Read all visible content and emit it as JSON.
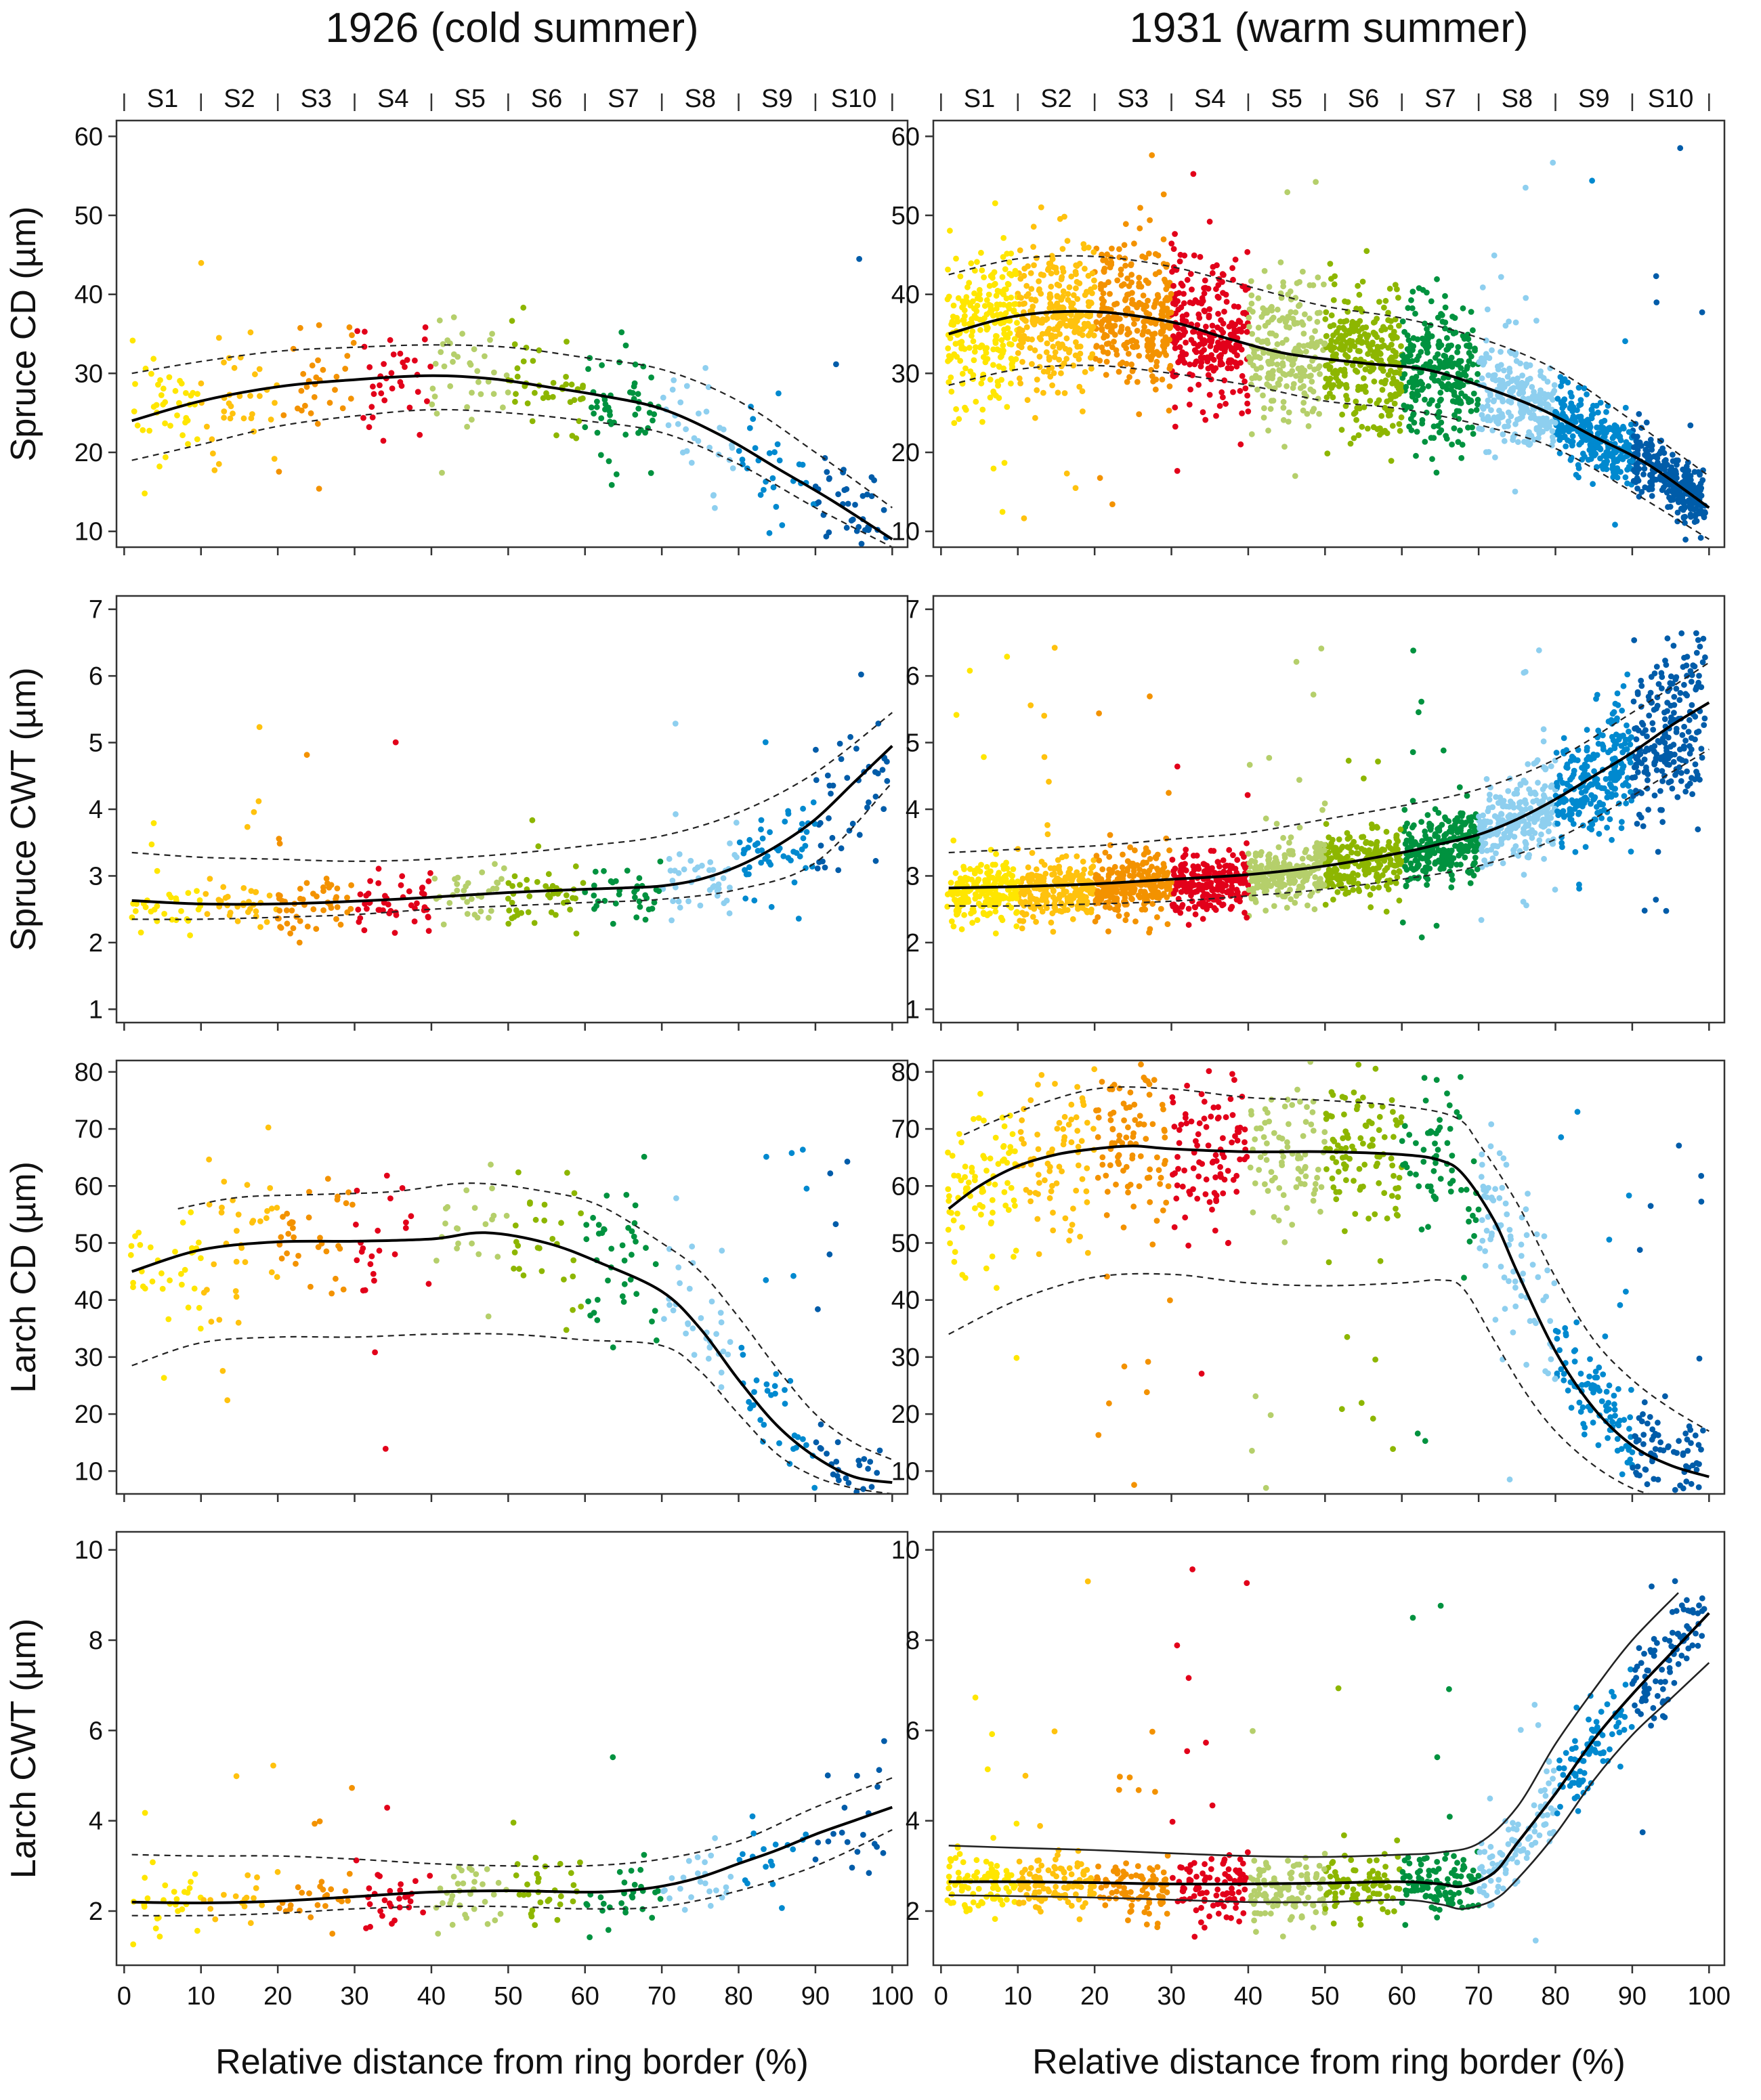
{
  "chart_data": {
    "type": "scatter",
    "columns": [
      {
        "title": "1926 (cold summer)",
        "xlabel": "Relative distance from ring border (%)"
      },
      {
        "title": "1931 (warm summer)",
        "xlabel": "Relative distance from ring border (%)"
      }
    ],
    "segments": {
      "labels": [
        "S1",
        "S2",
        "S3",
        "S4",
        "S5",
        "S6",
        "S7",
        "S8",
        "S9",
        "S10"
      ],
      "colors": [
        "#FFE600",
        "#FFC20E",
        "#F39200",
        "#E2001A",
        "#B5CF6B",
        "#8DB600",
        "#00923F",
        "#8ECFEF",
        "#0089CF",
        "#005CA9"
      ]
    },
    "x_ticks": [
      0,
      10,
      20,
      30,
      40,
      50,
      60,
      70,
      80,
      90,
      100
    ],
    "xlim": [
      -1,
      102
    ],
    "panels": [
      {
        "id": "spruce-cd-1926",
        "row": 0,
        "col": 0,
        "ylabel": "Spruce CD (µm)",
        "ylim": [
          8,
          62
        ],
        "y_ticks": [
          10,
          20,
          30,
          40,
          50,
          60
        ],
        "n_points": 380,
        "center_shift": 0,
        "spread": 3.5,
        "spread_growth": 0,
        "outlier_rate": 0.03,
        "outlier_range": [
          9,
          45
        ],
        "fit": {
          "x": [
            1,
            10,
            20,
            30,
            40,
            48,
            55,
            62,
            70,
            78,
            85,
            92,
            100
          ],
          "y": [
            24,
            26.5,
            28.3,
            29.2,
            29.7,
            29.3,
            28.3,
            27.2,
            25.5,
            22,
            18,
            14,
            9
          ]
        },
        "band_upper": {
          "x": [
            1,
            10,
            20,
            30,
            40,
            50,
            60,
            70,
            80,
            90,
            100
          ],
          "y": [
            30,
            31.5,
            32.8,
            33.3,
            33.6,
            33.3,
            32,
            30.5,
            26.5,
            20,
            13
          ]
        },
        "band_lower": {
          "x": [
            1,
            10,
            20,
            30,
            40,
            50,
            60,
            70,
            80,
            90,
            100
          ],
          "y": [
            19,
            21,
            23.3,
            24.6,
            25.4,
            25,
            24,
            22.5,
            18.5,
            13,
            8
          ]
        },
        "band_style": "dashed"
      },
      {
        "id": "spruce-cd-1931",
        "row": 0,
        "col": 1,
        "ylabel": "",
        "ylim": [
          8,
          62
        ],
        "y_ticks": [
          10,
          20,
          30,
          40,
          50,
          60
        ],
        "n_points": 2600,
        "center_shift": 0,
        "spread": 4.5,
        "spread_growth": -2,
        "outlier_rate": 0.02,
        "outlier_range": [
          10,
          59
        ],
        "fit": {
          "x": [
            1,
            10,
            20,
            30,
            37,
            45,
            55,
            63,
            70,
            78,
            85,
            92,
            100
          ],
          "y": [
            35,
            37.3,
            37.8,
            36.5,
            34.5,
            32.5,
            31.3,
            30.5,
            28.5,
            25.5,
            22,
            18.5,
            13
          ]
        },
        "band_upper": {
          "x": [
            1,
            10,
            20,
            30,
            40,
            50,
            60,
            70,
            80,
            90,
            100
          ],
          "y": [
            42.5,
            44.5,
            44.8,
            43.5,
            41,
            38.5,
            37,
            34.5,
            30.5,
            24,
            17
          ]
        },
        "band_lower": {
          "x": [
            1,
            10,
            20,
            30,
            40,
            50,
            60,
            70,
            80,
            90,
            100
          ],
          "y": [
            28.5,
            30.5,
            31,
            30,
            28.5,
            26.5,
            25.5,
            23.5,
            20.5,
            15,
            9
          ]
        },
        "band_style": "dashed"
      },
      {
        "id": "spruce-cwt-1926",
        "row": 1,
        "col": 0,
        "ylabel": "Spruce CWT (µm)",
        "ylim": [
          0.8,
          7.2
        ],
        "y_ticks": [
          1,
          2,
          3,
          4,
          5,
          6,
          7
        ],
        "n_points": 420,
        "center_shift": -0.05,
        "spread": 0.22,
        "spread_growth": 1.6,
        "outlier_rate": 0.06,
        "outlier_range": [
          1.8,
          5.3
        ],
        "fit": {
          "x": [
            1,
            10,
            20,
            30,
            40,
            50,
            60,
            65,
            70,
            75,
            80,
            85,
            90,
            95,
            100
          ],
          "y": [
            2.63,
            2.58,
            2.58,
            2.62,
            2.68,
            2.75,
            2.8,
            2.82,
            2.85,
            2.95,
            3.15,
            3.45,
            3.85,
            4.4,
            4.95
          ]
        },
        "band_upper": {
          "x": [
            1,
            10,
            20,
            30,
            40,
            50,
            60,
            70,
            80,
            90,
            100
          ],
          "y": [
            3.35,
            3.28,
            3.25,
            3.22,
            3.25,
            3.33,
            3.45,
            3.6,
            3.95,
            4.55,
            5.45
          ]
        },
        "band_lower": {
          "x": [
            1,
            10,
            20,
            30,
            40,
            50,
            60,
            70,
            80,
            90,
            100
          ],
          "y": [
            2.35,
            2.35,
            2.38,
            2.42,
            2.5,
            2.55,
            2.6,
            2.65,
            2.8,
            3.2,
            4.4
          ]
        },
        "band_style": "dashed"
      },
      {
        "id": "spruce-cwt-1931",
        "row": 1,
        "col": 1,
        "ylabel": "",
        "ylim": [
          0.8,
          7.2
        ],
        "y_ticks": [
          1,
          2,
          3,
          4,
          5,
          6,
          7
        ],
        "n_points": 2400,
        "center_shift": -0.05,
        "spread": 0.22,
        "spread_growth": 2.2,
        "outlier_rate": 0.03,
        "outlier_range": [
          2,
          6.6
        ],
        "fit": {
          "x": [
            1,
            10,
            20,
            30,
            40,
            50,
            60,
            65,
            70,
            75,
            80,
            85,
            90,
            95,
            100
          ],
          "y": [
            2.82,
            2.84,
            2.88,
            2.95,
            3.02,
            3.15,
            3.35,
            3.48,
            3.62,
            3.85,
            4.15,
            4.5,
            4.85,
            5.25,
            5.6
          ]
        },
        "band_upper": {
          "x": [
            1,
            10,
            20,
            30,
            40,
            50,
            60,
            70,
            80,
            90,
            100
          ],
          "y": [
            3.35,
            3.4,
            3.45,
            3.55,
            3.65,
            3.85,
            4.05,
            4.3,
            4.75,
            5.45,
            6.2
          ]
        },
        "band_lower": {
          "x": [
            1,
            10,
            20,
            30,
            40,
            50,
            60,
            70,
            80,
            90,
            100
          ],
          "y": [
            2.55,
            2.55,
            2.58,
            2.62,
            2.7,
            2.8,
            2.95,
            3.15,
            3.55,
            4.2,
            4.9
          ]
        },
        "band_style": "dashed"
      },
      {
        "id": "larch-cd-1926",
        "row": 2,
        "col": 0,
        "ylabel": "Larch CD (µm)",
        "ylim": [
          6,
          82
        ],
        "y_ticks": [
          10,
          20,
          30,
          40,
          50,
          60,
          70,
          80
        ],
        "n_points": 320,
        "center_shift": 1,
        "spread": 6,
        "spread_growth": -0.5,
        "outlier_rate": 0.1,
        "outlier_range": [
          8,
          71
        ],
        "fit": {
          "x": [
            1,
            10,
            20,
            30,
            40,
            47,
            55,
            62,
            70,
            75,
            80,
            85,
            90,
            95,
            100
          ],
          "y": [
            45,
            48.8,
            50.2,
            50.3,
            50.7,
            51.8,
            50,
            46.5,
            41.5,
            35,
            26,
            18,
            12.5,
            9,
            8
          ]
        },
        "band_upper": {
          "x": [
            7,
            15,
            25,
            35,
            45,
            55,
            62,
            70,
            75,
            80,
            85,
            90,
            95,
            100
          ],
          "y": [
            56,
            58,
            58.5,
            59,
            60.5,
            59,
            56.5,
            50,
            45,
            37,
            28,
            20,
            15,
            12
          ]
        },
        "band_lower": {
          "x": [
            1,
            10,
            20,
            30,
            40,
            50,
            60,
            70,
            75,
            80,
            85,
            90,
            95,
            100
          ],
          "y": [
            28.5,
            32.5,
            33.5,
            33.5,
            34,
            34,
            33,
            32,
            27.5,
            20,
            13,
            9,
            7,
            6
          ]
        },
        "band_style": "dashed"
      },
      {
        "id": "larch-cd-1931",
        "row": 2,
        "col": 1,
        "ylabel": "",
        "ylim": [
          6,
          82
        ],
        "y_ticks": [
          10,
          20,
          30,
          40,
          50,
          60,
          70,
          80
        ],
        "n_points": 880,
        "center_shift": 1,
        "spread": 6.5,
        "spread_growth": -0.5,
        "outlier_rate": 0.09,
        "outlier_range": [
          7,
          80
        ],
        "fit": {
          "x": [
            1,
            5,
            10,
            15,
            20,
            25,
            30,
            40,
            50,
            60,
            65,
            68,
            72,
            75,
            80,
            85,
            90,
            95,
            100
          ],
          "y": [
            56,
            60,
            63.5,
            65.5,
            66.5,
            67,
            66.5,
            66,
            66,
            65.5,
            64.5,
            62,
            54,
            45,
            31,
            21,
            14.5,
            11,
            9
          ]
        },
        "band_upper": {
          "x": [
            3,
            10,
            20,
            30,
            40,
            50,
            60,
            67,
            70,
            75,
            80,
            85,
            90,
            95,
            100
          ],
          "y": [
            69,
            73,
            77,
            77,
            75.5,
            75,
            74,
            72,
            67.5,
            57,
            44,
            33,
            26,
            21,
            17
          ]
        },
        "band_lower": {
          "x": [
            1,
            10,
            20,
            30,
            40,
            50,
            60,
            65,
            68,
            72,
            76,
            80,
            85,
            90,
            95
          ],
          "y": [
            34,
            40,
            44,
            44.5,
            43,
            42.5,
            43,
            43.5,
            42,
            33,
            24,
            17,
            11,
            7,
            5
          ]
        },
        "band_style": "dashed"
      },
      {
        "id": "larch-cwt-1926",
        "row": 3,
        "col": 0,
        "ylabel": "Larch CWT (µm)",
        "ylim": [
          0.8,
          10.4
        ],
        "y_ticks": [
          2,
          4,
          6,
          8,
          10
        ],
        "n_points": 260,
        "center_shift": -0.05,
        "spread": 0.35,
        "spread_growth": 1.2,
        "outlier_rate": 0.07,
        "outlier_range": [
          1.4,
          6.2
        ],
        "fit": {
          "x": [
            1,
            10,
            20,
            30,
            40,
            50,
            60,
            65,
            70,
            75,
            80,
            85,
            90,
            95,
            100
          ],
          "y": [
            2.2,
            2.18,
            2.22,
            2.32,
            2.42,
            2.45,
            2.42,
            2.45,
            2.55,
            2.75,
            3.05,
            3.35,
            3.7,
            4,
            4.3
          ]
        },
        "band_upper": {
          "x": [
            1,
            10,
            20,
            30,
            40,
            50,
            60,
            70,
            80,
            90,
            100
          ],
          "y": [
            3.25,
            3.22,
            3.22,
            3.15,
            3.05,
            3,
            3,
            3.15,
            3.55,
            4.3,
            4.95
          ]
        },
        "band_lower": {
          "x": [
            1,
            10,
            20,
            30,
            40,
            50,
            60,
            70,
            80,
            90,
            100
          ],
          "y": [
            1.9,
            1.9,
            1.95,
            2.05,
            2.1,
            2.1,
            2.05,
            2.1,
            2.45,
            3,
            3.8
          ]
        },
        "band_style": "dashed"
      },
      {
        "id": "larch-cwt-1931",
        "row": 3,
        "col": 1,
        "ylabel": "",
        "ylim": [
          0.8,
          10.4
        ],
        "y_ticks": [
          2,
          4,
          6,
          8,
          10
        ],
        "n_points": 1000,
        "center_shift": -0.05,
        "spread": 0.35,
        "spread_growth": 0.5,
        "outlier_rate": 0.04,
        "outlier_range": [
          1.3,
          9.6
        ],
        "fit": {
          "x": [
            1,
            10,
            20,
            30,
            40,
            50,
            60,
            65,
            68,
            72,
            75,
            80,
            85,
            90,
            95,
            100
          ],
          "y": [
            2.65,
            2.65,
            2.63,
            2.6,
            2.6,
            2.62,
            2.65,
            2.6,
            2.55,
            2.85,
            3.5,
            4.6,
            5.8,
            6.8,
            7.7,
            8.6
          ]
        },
        "band_upper": {
          "x": [
            1,
            10,
            20,
            30,
            40,
            50,
            60,
            65,
            70,
            75,
            80,
            85,
            90,
            96
          ],
          "y": [
            3.45,
            3.4,
            3.35,
            3.28,
            3.22,
            3.2,
            3.25,
            3.3,
            3.5,
            4.3,
            5.7,
            6.9,
            8,
            9.05
          ]
        },
        "band_lower": {
          "x": [
            1,
            10,
            20,
            30,
            40,
            50,
            60,
            65,
            68,
            72,
            75,
            80,
            85,
            90,
            95,
            100
          ],
          "y": [
            2.35,
            2.33,
            2.3,
            2.25,
            2.2,
            2.2,
            2.25,
            2.15,
            2.05,
            2.25,
            2.7,
            3.7,
            4.9,
            5.9,
            6.7,
            7.5
          ]
        },
        "band_style": "solid"
      }
    ]
  }
}
